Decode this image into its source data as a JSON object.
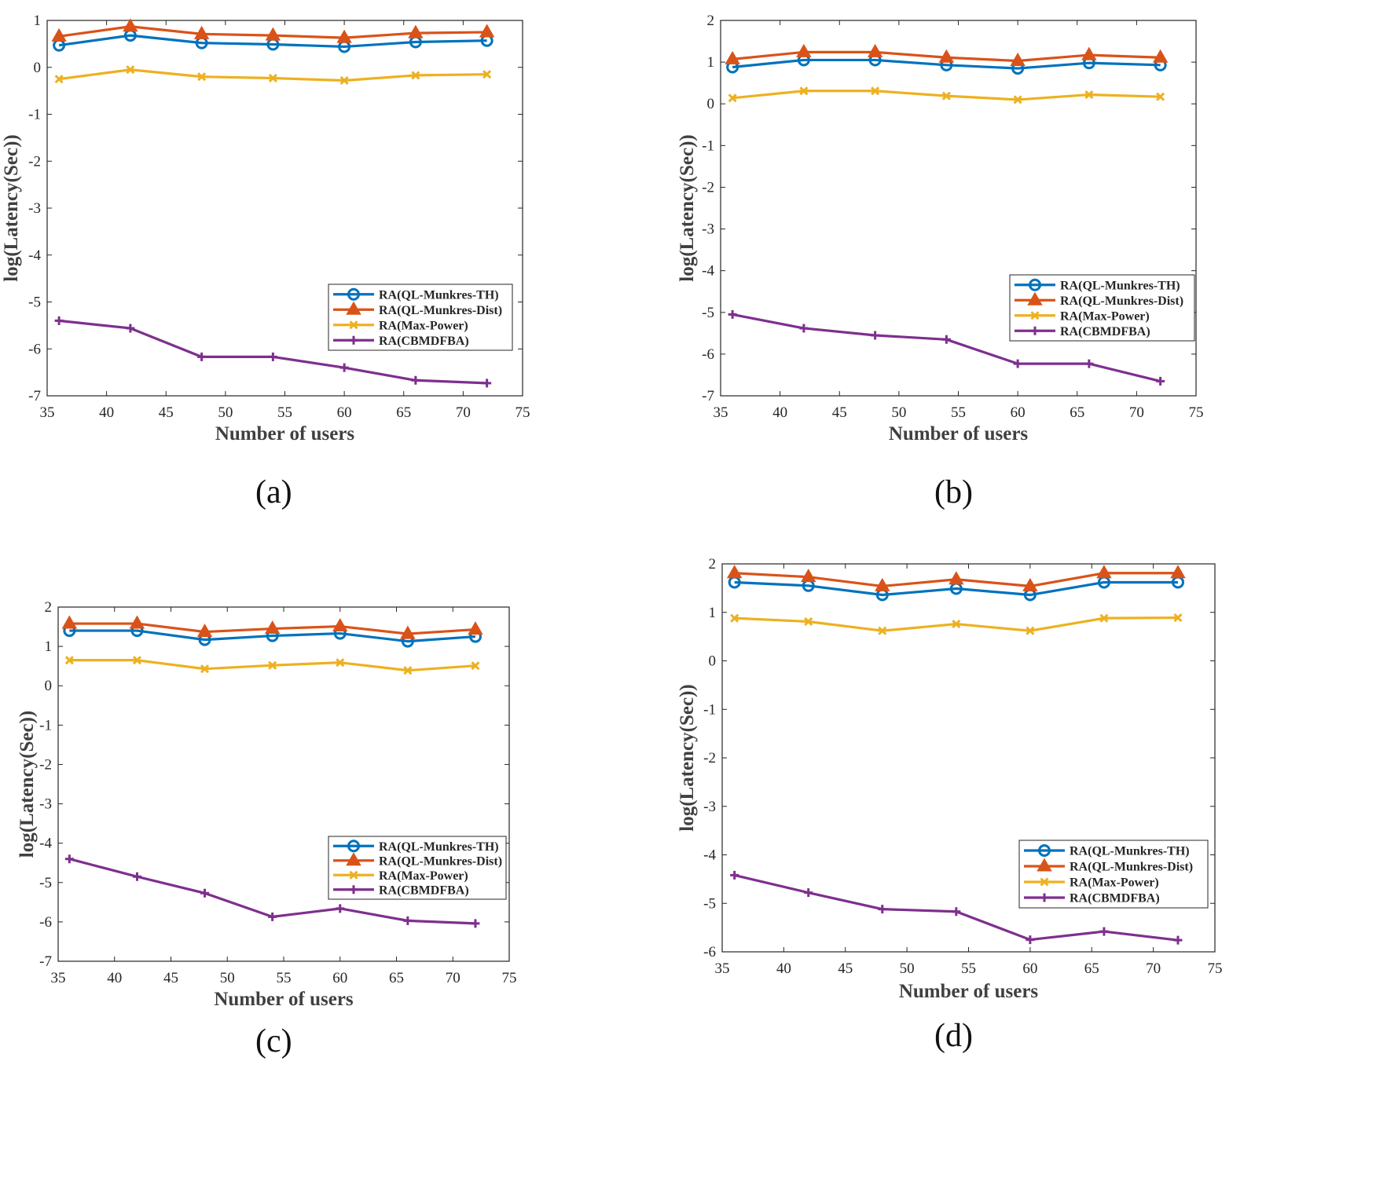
{
  "chart_data": [
    {
      "type": "line",
      "caption": "(a)",
      "xlabel": "Number of users",
      "ylabel": "log(Latency(Sec))",
      "xlim": [
        35,
        75
      ],
      "ylim": [
        -7,
        1
      ],
      "xticks": [
        35,
        40,
        45,
        50,
        55,
        60,
        65,
        70,
        75
      ],
      "yticks": [
        1,
        0,
        -1,
        -2,
        -3,
        -4,
        -5,
        -6,
        -7
      ],
      "x": [
        36,
        42,
        48,
        54,
        60,
        66,
        72
      ],
      "legend_position": "lower-right",
      "series": [
        {
          "name": "RA(QL-Munkres-TH)",
          "color": "#0072BD",
          "marker": "circle",
          "values": [
            0.47,
            0.68,
            0.52,
            0.49,
            0.44,
            0.54,
            0.57
          ]
        },
        {
          "name": "RA(QL-Munkres-Dist)",
          "color": "#D95319",
          "marker": "triangle",
          "values": [
            0.66,
            0.87,
            0.71,
            0.68,
            0.63,
            0.73,
            0.75
          ]
        },
        {
          "name": "RA(Max-Power)",
          "color": "#EDB120",
          "marker": "x",
          "values": [
            -0.25,
            -0.05,
            -0.2,
            -0.23,
            -0.28,
            -0.17,
            -0.15
          ]
        },
        {
          "name": "RA(CBMDFBA)",
          "color": "#7E2F8E",
          "marker": "plus",
          "values": [
            -5.4,
            -5.56,
            -6.17,
            -6.17,
            -6.4,
            -6.67,
            -6.73
          ]
        }
      ]
    },
    {
      "type": "line",
      "caption": "(b)",
      "xlabel": "Number of users",
      "ylabel": "log(Latency(Sec))",
      "xlim": [
        35,
        75
      ],
      "ylim": [
        -7,
        2
      ],
      "xticks": [
        35,
        40,
        45,
        50,
        55,
        60,
        65,
        70,
        75
      ],
      "yticks": [
        2,
        1,
        0,
        -1,
        -2,
        -3,
        -4,
        -5,
        -6,
        -7
      ],
      "x": [
        36,
        42,
        48,
        54,
        60,
        66,
        72
      ],
      "legend_position": "lower-right",
      "series": [
        {
          "name": "RA(QL-Munkres-TH)",
          "color": "#0072BD",
          "marker": "circle",
          "values": [
            0.88,
            1.05,
            1.05,
            0.93,
            0.85,
            0.98,
            0.93
          ]
        },
        {
          "name": "RA(QL-Munkres-Dist)",
          "color": "#D95319",
          "marker": "triangle",
          "values": [
            1.07,
            1.24,
            1.24,
            1.11,
            1.03,
            1.17,
            1.11
          ]
        },
        {
          "name": "RA(Max-Power)",
          "color": "#EDB120",
          "marker": "x",
          "values": [
            0.14,
            0.31,
            0.31,
            0.19,
            0.1,
            0.22,
            0.17
          ]
        },
        {
          "name": "RA(CBMDFBA)",
          "color": "#7E2F8E",
          "marker": "plus",
          "values": [
            -5.05,
            -5.38,
            -5.55,
            -5.65,
            -6.23,
            -6.23,
            -6.65
          ]
        }
      ]
    },
    {
      "type": "line",
      "caption": "(c)",
      "xlabel": "Number of users",
      "ylabel": "log(Latency(Sec))",
      "xlim": [
        35,
        75
      ],
      "ylim": [
        -7,
        2
      ],
      "xticks": [
        35,
        40,
        45,
        50,
        55,
        60,
        65,
        70,
        75
      ],
      "yticks": [
        2,
        1,
        0,
        -1,
        -2,
        -3,
        -4,
        -5,
        -6,
        -7
      ],
      "x": [
        36,
        42,
        48,
        54,
        60,
        66,
        72
      ],
      "legend_position": "lower-right",
      "series": [
        {
          "name": "RA(QL-Munkres-TH)",
          "color": "#0072BD",
          "marker": "circle",
          "values": [
            1.4,
            1.4,
            1.17,
            1.27,
            1.33,
            1.13,
            1.25
          ]
        },
        {
          "name": "RA(QL-Munkres-Dist)",
          "color": "#D95319",
          "marker": "triangle",
          "values": [
            1.58,
            1.58,
            1.37,
            1.45,
            1.51,
            1.32,
            1.43
          ]
        },
        {
          "name": "RA(Max-Power)",
          "color": "#EDB120",
          "marker": "x",
          "values": [
            0.65,
            0.65,
            0.43,
            0.52,
            0.59,
            0.39,
            0.51
          ]
        },
        {
          "name": "RA(CBMDFBA)",
          "color": "#7E2F8E",
          "marker": "plus",
          "values": [
            -4.4,
            -4.85,
            -5.27,
            -5.87,
            -5.66,
            -5.97,
            -6.04
          ]
        }
      ]
    },
    {
      "type": "line",
      "caption": "(d)",
      "xlabel": "Number of users",
      "ylabel": "log(Latency(Sec))",
      "xlim": [
        35,
        75
      ],
      "ylim": [
        -6,
        2
      ],
      "xticks": [
        35,
        40,
        45,
        50,
        55,
        60,
        65,
        70,
        75
      ],
      "yticks": [
        2,
        1,
        0,
        -1,
        -2,
        -3,
        -4,
        -5,
        -6
      ],
      "x": [
        36,
        42,
        48,
        54,
        60,
        66,
        72
      ],
      "legend_position": "lower-right",
      "series": [
        {
          "name": "RA(QL-Munkres-TH)",
          "color": "#0072BD",
          "marker": "circle",
          "values": [
            1.62,
            1.55,
            1.36,
            1.49,
            1.36,
            1.62,
            1.62
          ]
        },
        {
          "name": "RA(QL-Munkres-Dist)",
          "color": "#D95319",
          "marker": "triangle",
          "values": [
            1.81,
            1.73,
            1.54,
            1.68,
            1.54,
            1.81,
            1.81
          ]
        },
        {
          "name": "RA(Max-Power)",
          "color": "#EDB120",
          "marker": "x",
          "values": [
            0.88,
            0.81,
            0.62,
            0.76,
            0.62,
            0.88,
            0.89
          ]
        },
        {
          "name": "RA(CBMDFBA)",
          "color": "#7E2F8E",
          "marker": "plus",
          "values": [
            -4.42,
            -4.78,
            -5.12,
            -5.17,
            -5.75,
            -5.58,
            -5.76
          ]
        }
      ]
    }
  ]
}
